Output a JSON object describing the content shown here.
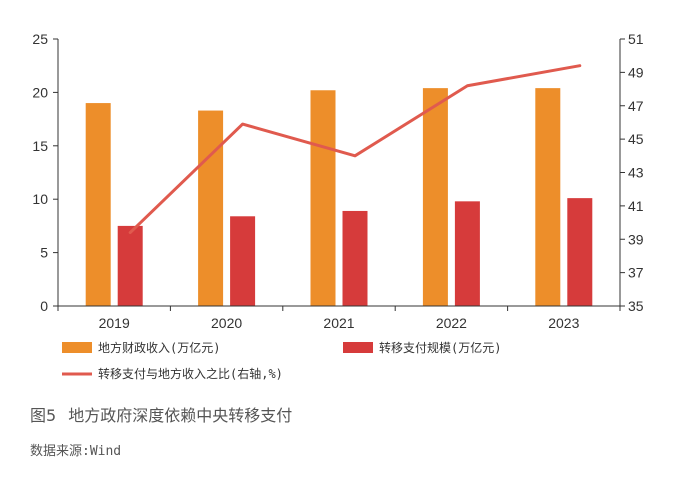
{
  "figure": {
    "number": "图5",
    "title": "地方政府深度依赖中央转移支付",
    "source": "数据来源:Wind"
  },
  "chart_data": {
    "type": "bar",
    "categories": [
      "2019",
      "2020",
      "2021",
      "2022",
      "2023"
    ],
    "series": [
      {
        "name": "地方财政收入(万亿元)",
        "type": "bar",
        "axis": "left",
        "color": "#ED8E2A",
        "values": [
          19.0,
          18.3,
          20.2,
          20.4,
          20.4
        ]
      },
      {
        "name": "转移支付规模(万亿元)",
        "type": "bar",
        "axis": "left",
        "color": "#D63B3B",
        "values": [
          7.5,
          8.4,
          8.9,
          9.8,
          10.1
        ]
      },
      {
        "name": "转移支付与地方收入之比(右轴,%)",
        "type": "line",
        "axis": "right",
        "color": "#E05A4E",
        "values": [
          39.4,
          45.9,
          44.0,
          48.2,
          49.4
        ]
      }
    ],
    "y_left": {
      "lim": [
        0,
        25
      ],
      "ticks": [
        "0",
        "5",
        "10",
        "15",
        "20",
        "25"
      ]
    },
    "y_right": {
      "lim": [
        35,
        51
      ],
      "ticks": [
        "35",
        "37",
        "39",
        "41",
        "43",
        "45",
        "47",
        "49",
        "51"
      ]
    },
    "grid": false,
    "legend_position": "bottom"
  }
}
